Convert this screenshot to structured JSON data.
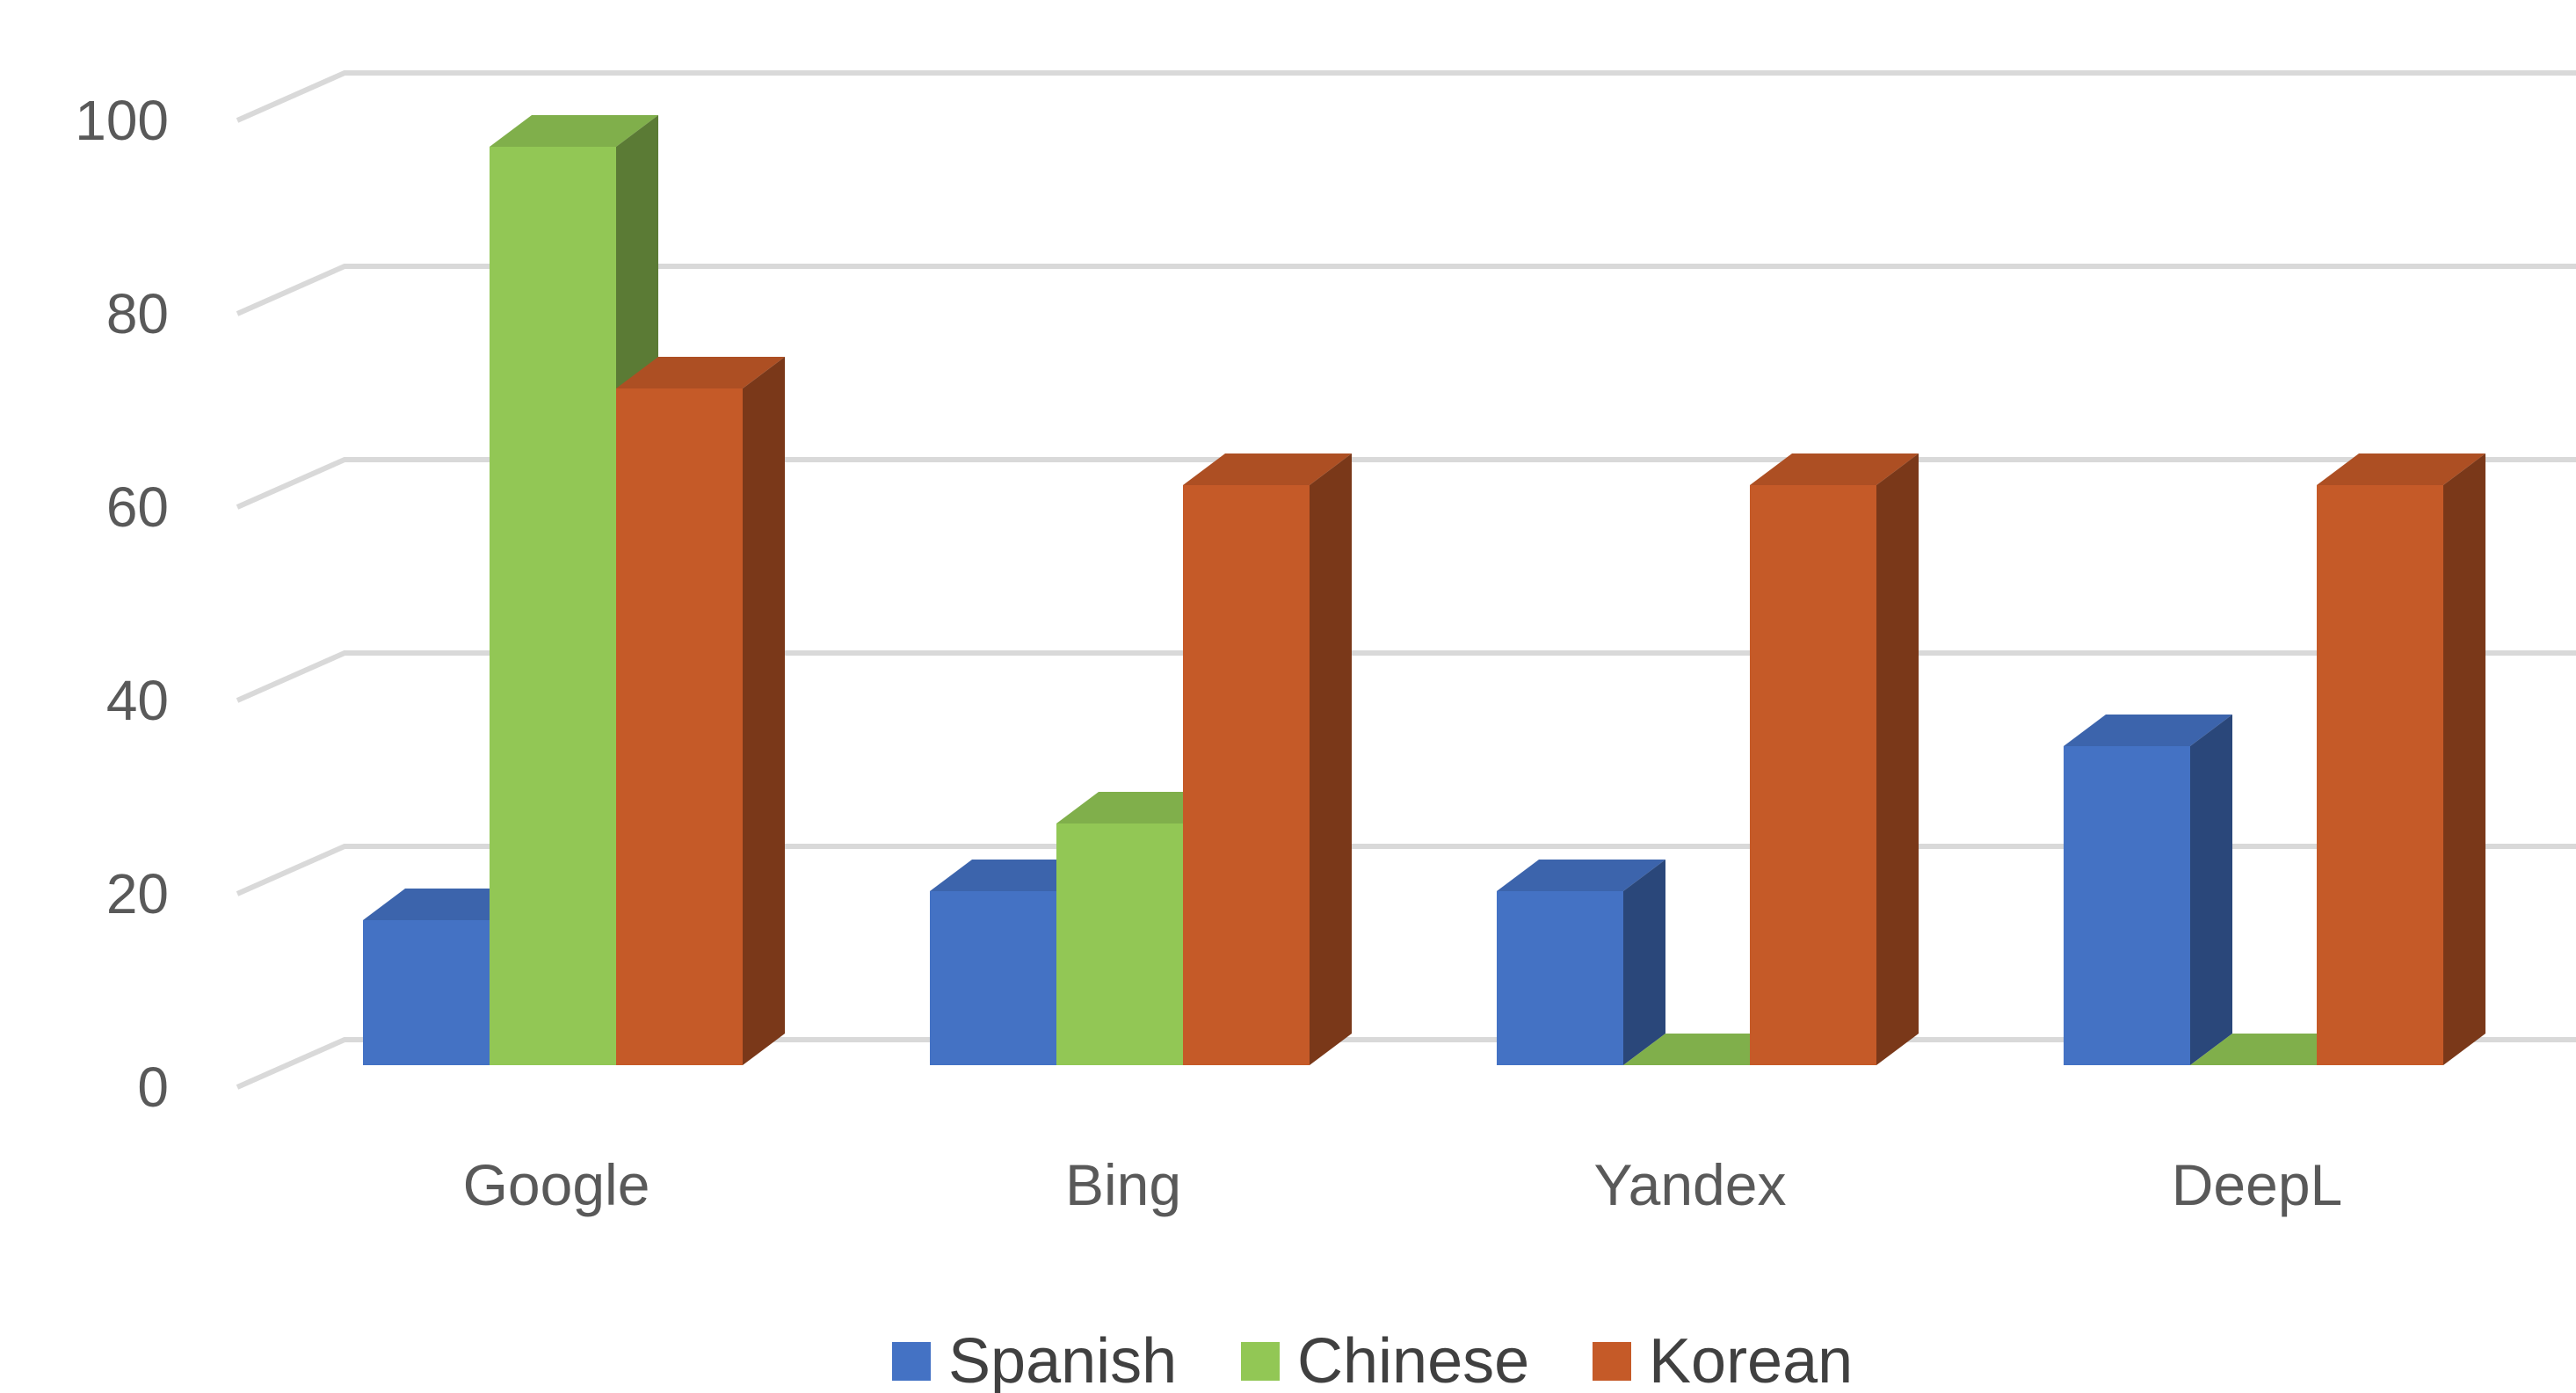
{
  "chart_data": {
    "type": "bar",
    "style": "3d-clustered-column",
    "categories": [
      "Google",
      "Bing",
      "Yandex",
      "DeepL"
    ],
    "series": [
      {
        "name": "Spanish",
        "values": [
          15,
          18,
          18,
          33
        ],
        "color": "#4472C4"
      },
      {
        "name": "Chinese",
        "values": [
          95,
          25,
          0,
          0
        ],
        "color": "#92C755"
      },
      {
        "name": "Korean",
        "values": [
          70,
          60,
          60,
          60
        ],
        "color": "#C55A28"
      }
    ],
    "title": "",
    "xlabel": "",
    "ylabel": "",
    "ylim": [
      0,
      100
    ],
    "yticks": [
      0,
      20,
      40,
      60,
      80,
      100
    ],
    "grid": true,
    "legend_position": "bottom"
  }
}
